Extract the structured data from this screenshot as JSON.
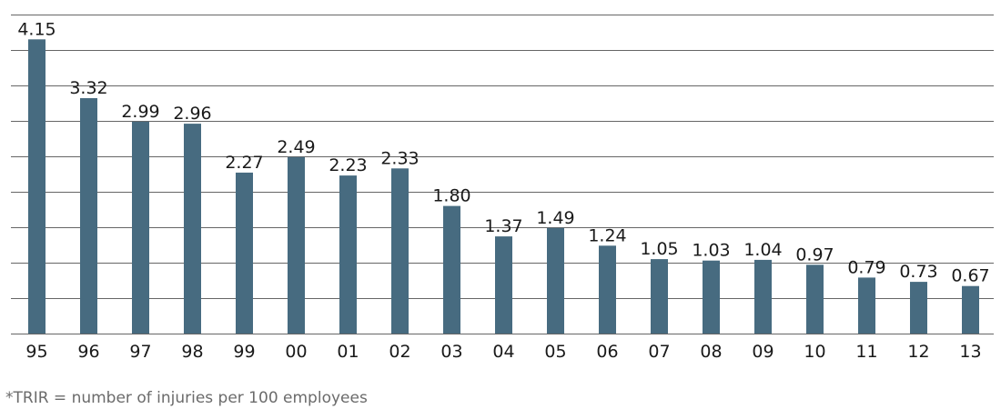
{
  "chart_data": {
    "type": "bar",
    "title": "",
    "xlabel": "",
    "ylabel": "",
    "categories": [
      "95",
      "96",
      "97",
      "98",
      "99",
      "00",
      "01",
      "02",
      "03",
      "04",
      "05",
      "06",
      "07",
      "08",
      "09",
      "10",
      "11",
      "12",
      "13"
    ],
    "values": [
      4.15,
      3.32,
      2.99,
      2.96,
      2.27,
      2.49,
      2.23,
      2.33,
      1.8,
      1.37,
      1.49,
      1.24,
      1.05,
      1.03,
      1.04,
      0.97,
      0.79,
      0.73,
      0.67
    ],
    "value_labels": [
      "4.15",
      "3.32",
      "2.99",
      "2.96",
      "2.27",
      "2.49",
      "2.23",
      "2.33",
      "1.80",
      "1.37",
      "1.49",
      "1.24",
      "1.05",
      "1.03",
      "1.04",
      "0.97",
      "0.79",
      "0.73",
      "0.67"
    ],
    "ylim": [
      0,
      4.5
    ],
    "grid_step": 0.5,
    "grid": true,
    "y_tick_labels": false,
    "bar_color": "#476b80",
    "grid_color": "#666666",
    "footnote": "*TRIR = number of injuries per 100 employees"
  }
}
